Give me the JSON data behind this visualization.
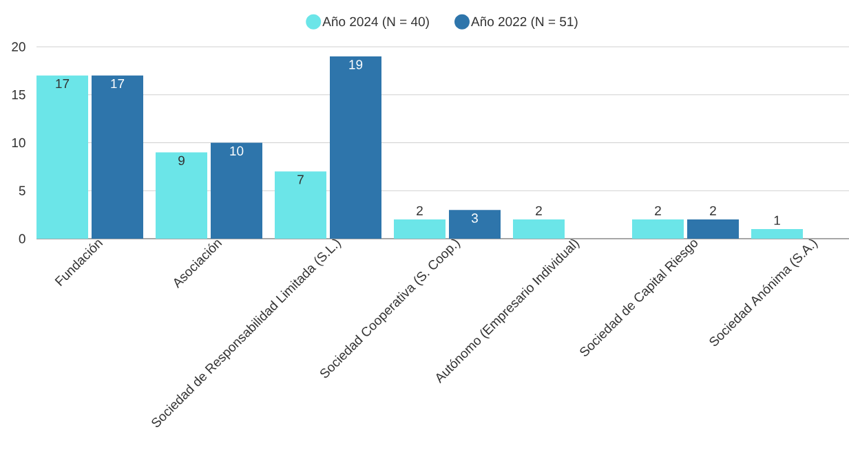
{
  "chart_data": {
    "type": "bar",
    "categories": [
      "Fundación",
      "Asociación",
      "Sociedad de Responsabilidad Limitada (S.L.)",
      "Sociedad Cooperativa (S. Coop.)",
      "Autónomo (Empresario Individual)",
      "Sociedad de Capital Riesgo",
      "Sociedad Anónima (S.A.)"
    ],
    "series": [
      {
        "name": "Año 2024 (N = 40)",
        "color": "#6be5e8",
        "values": [
          17,
          9,
          7,
          2,
          2,
          2,
          1
        ]
      },
      {
        "name": "Año 2022 (N = 51)",
        "color": "#2e75ab",
        "values": [
          17,
          10,
          19,
          3,
          null,
          2,
          null
        ]
      }
    ],
    "ylim": [
      0,
      20
    ],
    "yticks": [
      0,
      5,
      10,
      15,
      20
    ],
    "grid": "y",
    "legend": "top",
    "data_labels": true
  }
}
